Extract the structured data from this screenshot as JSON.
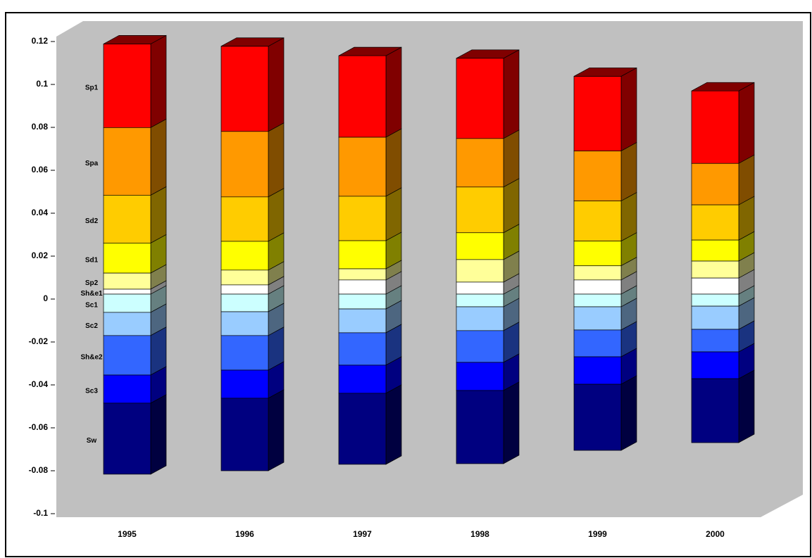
{
  "chart_data": {
    "type": "bar3d_stacked",
    "categories": [
      "1995",
      "1996",
      "1997",
      "1998",
      "1999",
      "2000"
    ],
    "series": [
      {
        "name": "Sp1",
        "color": "#ff0000",
        "values": [
          0.039,
          0.0397,
          0.038,
          0.0374,
          0.0348,
          0.0338
        ]
      },
      {
        "name": "Spa",
        "color": "#ff9900",
        "values": [
          0.0315,
          0.0305,
          0.0275,
          0.0226,
          0.0233,
          0.0193
        ]
      },
      {
        "name": "Sd2",
        "color": "#ffcc00",
        "values": [
          0.0223,
          0.0207,
          0.0207,
          0.0213,
          0.0187,
          0.0164
        ]
      },
      {
        "name": "Sd1",
        "color": "#ffff00",
        "values": [
          0.014,
          0.0134,
          0.0131,
          0.0125,
          0.0115,
          0.0098
        ]
      },
      {
        "name": "Sp2",
        "color": "#ffff99",
        "values": [
          0.0075,
          0.0069,
          0.0052,
          0.0105,
          0.0066,
          0.0079
        ]
      },
      {
        "name": "Sh&e1",
        "color": "#ffffff",
        "values": [
          0.0023,
          0.0043,
          0.0066,
          0.0056,
          0.0066,
          0.0075
        ]
      },
      {
        "name": "Sc1",
        "color": "#ccffff",
        "values": [
          -0.0085,
          -0.0082,
          -0.0069,
          -0.0059,
          -0.0059,
          -0.0056
        ]
      },
      {
        "name": "Sc2",
        "color": "#99ccff",
        "values": [
          -0.0108,
          -0.0111,
          -0.0111,
          -0.0111,
          -0.0108,
          -0.0108
        ]
      },
      {
        "name": "Sh&e2",
        "color": "#3366ff",
        "values": [
          -0.0184,
          -0.0161,
          -0.0151,
          -0.0148,
          -0.0125,
          -0.0105
        ]
      },
      {
        "name": "Sc3",
        "color": "#0000ff",
        "values": [
          -0.0131,
          -0.0131,
          -0.0131,
          -0.0131,
          -0.0128,
          -0.0125
        ]
      },
      {
        "name": "Sw",
        "color": "#000080",
        "values": [
          -0.0331,
          -0.0338,
          -0.0331,
          -0.0341,
          -0.0308,
          -0.0298
        ]
      }
    ],
    "ylim": [
      -0.1,
      0.12
    ],
    "yticks": [
      0.12,
      0.1,
      0.08,
      0.06,
      0.04,
      0.02,
      0,
      -0.02,
      -0.04,
      -0.06,
      -0.08,
      -0.1
    ]
  }
}
